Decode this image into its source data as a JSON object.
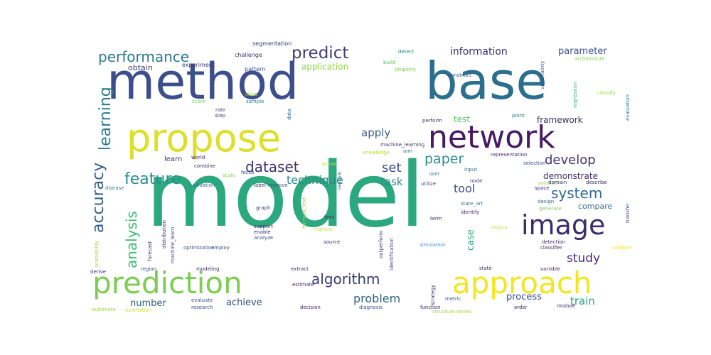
{
  "cloud": {
    "words": [
      {
        "text": "model",
        "weight": 100,
        "color": "#2ca87f"
      },
      {
        "text": "method",
        "weight": 72,
        "color": "#3c4f8c"
      },
      {
        "text": "base",
        "weight": 72,
        "color": "#2c6e8e"
      },
      {
        "text": "propose",
        "weight": 52,
        "color": "#dde02b"
      },
      {
        "text": "network",
        "weight": 44,
        "color": "#471a63"
      },
      {
        "text": "prediction",
        "weight": 40,
        "color": "#7ccd52"
      },
      {
        "text": "approach",
        "weight": 40,
        "color": "#f4e61e"
      },
      {
        "text": "image",
        "weight": 38,
        "color": "#3a2d6c"
      },
      {
        "text": "accuracy",
        "weight": 22,
        "color": "#365f8c"
      },
      {
        "text": "learning",
        "weight": 22,
        "color": "#2a7c8e"
      },
      {
        "text": "feature",
        "weight": 21,
        "color": "#26918b"
      },
      {
        "text": "analysis",
        "weight": 20,
        "color": "#3fbb74"
      },
      {
        "text": "predict",
        "weight": 22,
        "color": "#423b73"
      },
      {
        "text": "performance",
        "weight": 21,
        "color": "#2c7b8d"
      },
      {
        "text": "dataset",
        "weight": 20,
        "color": "#3d2f6b"
      },
      {
        "text": "algorithm",
        "weight": 20,
        "color": "#3a3b74"
      },
      {
        "text": "system",
        "weight": 20,
        "color": "#306a8e"
      },
      {
        "text": "paper",
        "weight": 19,
        "color": "#2a9187"
      },
      {
        "text": "develop",
        "weight": 18,
        "color": "#46306e"
      },
      {
        "text": "set",
        "weight": 18,
        "color": "#3e4787"
      },
      {
        "text": "study",
        "weight": 17,
        "color": "#482878"
      },
      {
        "text": "problem",
        "weight": 16,
        "color": "#30657f"
      },
      {
        "text": "technique",
        "weight": 16,
        "color": "#2c8a8a"
      },
      {
        "text": "tool",
        "weight": 16,
        "color": "#3d4c89"
      },
      {
        "text": "task",
        "weight": 15,
        "color": "#2c8a8c"
      },
      {
        "text": "apply",
        "weight": 15,
        "color": "#3a5d8a"
      },
      {
        "text": "train",
        "weight": 15,
        "color": "#2aa07e"
      },
      {
        "text": "information",
        "weight": 14,
        "color": "#3a2f6b"
      },
      {
        "text": "parameter",
        "weight": 13,
        "color": "#3b4f8a"
      },
      {
        "text": "process",
        "weight": 13,
        "color": "#3b4d8a"
      },
      {
        "text": "achieve",
        "weight": 13,
        "color": "#2e4f7a"
      },
      {
        "text": "number",
        "weight": 13,
        "color": "#2e5f80"
      },
      {
        "text": "case",
        "weight": 13,
        "color": "#2aa17e"
      },
      {
        "text": "framework",
        "weight": 12,
        "color": "#3a2f6b"
      },
      {
        "text": "test",
        "weight": 12,
        "color": "#5bc862"
      },
      {
        "text": "application",
        "weight": 12,
        "color": "#8dd544"
      },
      {
        "text": "demonstrate",
        "weight": 12,
        "color": "#3e2b72"
      },
      {
        "text": "compare",
        "weight": 11,
        "color": "#3b6d8c"
      },
      {
        "text": "obtain",
        "weight": 11,
        "color": "#3e3a6e"
      },
      {
        "text": "learn",
        "weight": 10,
        "color": "#3d2e6b"
      },
      {
        "text": "experiment",
        "weight": 8,
        "color": "#3a3a6e"
      },
      {
        "text": "segmentation",
        "weight": 8,
        "color": "#333b70"
      },
      {
        "text": "challenge",
        "weight": 8,
        "color": "#3b2c6d"
      },
      {
        "text": "pattern",
        "weight": 8,
        "color": "#3d4c88"
      },
      {
        "text": "build",
        "weight": 7,
        "color": "#5ac763"
      },
      {
        "text": "detect",
        "weight": 7,
        "color": "#2d7a8d"
      },
      {
        "text": "architecture",
        "weight": 7,
        "color": "#80d04c"
      },
      {
        "text": "property",
        "weight": 7,
        "color": "#87d24a"
      },
      {
        "text": "construct",
        "weight": 7,
        "color": "#2d4e85"
      },
      {
        "text": "uncertainty",
        "weight": 7,
        "color": "#3b4e87"
      },
      {
        "text": "regression",
        "weight": 7,
        "color": "#3ab776"
      },
      {
        "text": "classify",
        "weight": 7,
        "color": "#9fd43c"
      },
      {
        "text": "evaluation",
        "weight": 7,
        "color": "#2d7d8d"
      },
      {
        "text": "point",
        "weight": 7,
        "color": "#2c6f8d"
      },
      {
        "text": "perform",
        "weight": 7,
        "color": "#3a2a65"
      },
      {
        "text": "data",
        "weight": 7,
        "color": "#2d6a8d"
      },
      {
        "text": "score",
        "weight": 7,
        "color": "#74cf52"
      },
      {
        "text": "rate",
        "weight": 7,
        "color": "#3d3e7a"
      },
      {
        "text": "step",
        "weight": 7,
        "color": "#3f3b6f"
      },
      {
        "text": "sample",
        "weight": 7,
        "color": "#2a838c"
      },
      {
        "text": "class",
        "weight": 7,
        "color": "#9bd93b"
      },
      {
        "text": "simulation",
        "weight": 7,
        "color": "#4a8ec7"
      },
      {
        "text": "disease",
        "weight": 7,
        "color": "#2c7e8e"
      },
      {
        "text": "world",
        "weight": 7,
        "color": "#3c2c6d"
      },
      {
        "text": "combine",
        "weight": 7,
        "color": "#3a3066"
      },
      {
        "text": "machine_learning",
        "weight": 7,
        "color": "#3d2f6a"
      },
      {
        "text": "aim",
        "weight": 7,
        "color": "#2c6f8d"
      },
      {
        "text": "knowledge",
        "weight": 7,
        "color": "#b2dc33"
      },
      {
        "text": "prove",
        "weight": 7,
        "color": "#c4e030"
      },
      {
        "text": "scale",
        "weight": 7,
        "color": "#7fd34e"
      },
      {
        "text": "focus",
        "weight": 7,
        "color": "#3b4f89"
      },
      {
        "text": "validation",
        "weight": 7,
        "color": "#2d6e8c"
      },
      {
        "text": "label",
        "weight": 7,
        "color": "#3a2a6a"
      },
      {
        "text": "improve",
        "weight": 7,
        "color": "#3b4f88"
      },
      {
        "text": "require",
        "weight": 7,
        "color": "#2d6e8c"
      },
      {
        "text": "user",
        "weight": 7,
        "color": "#2d7d8d"
      },
      {
        "text": "input",
        "weight": 7,
        "color": "#2c6f8d"
      },
      {
        "text": "node",
        "weight": 7,
        "color": "#3a3d7c"
      },
      {
        "text": "utilize",
        "weight": 7,
        "color": "#3b4f88"
      },
      {
        "text": "space",
        "weight": 7,
        "color": "#3c2c6d"
      },
      {
        "text": "solution",
        "weight": 7,
        "color": "#9fd83a"
      },
      {
        "text": "representation",
        "weight": 7,
        "color": "#3a2a65"
      },
      {
        "text": "selection",
        "weight": 7,
        "color": "#3d4c88"
      },
      {
        "text": "domain",
        "weight": 7,
        "color": "#3a3b74"
      },
      {
        "text": "describe",
        "weight": 7,
        "color": "#3a2a65"
      },
      {
        "text": "design",
        "weight": 7,
        "color": "#2d6e8c"
      },
      {
        "text": "generate",
        "weight": 7,
        "color": "#87d24a"
      },
      {
        "text": "identify",
        "weight": 7,
        "color": "#3a2a65"
      },
      {
        "text": "state_art",
        "weight": 7,
        "color": "#3c6e8d"
      },
      {
        "text": "transfer",
        "weight": 7,
        "color": "#3d4c88"
      },
      {
        "text": "graph",
        "weight": 7,
        "color": "#3a3d7c"
      },
      {
        "text": "formula_text",
        "weight": 7,
        "color": "#9fd83a"
      },
      {
        "text": "text",
        "weight": 7,
        "color": "#3a2a65"
      },
      {
        "text": "term",
        "weight": 7,
        "color": "#3a2a65"
      },
      {
        "text": "capture",
        "weight": 7,
        "color": "#c4e030"
      },
      {
        "text": "reduce",
        "weight": 7,
        "color": "#c4e030"
      },
      {
        "text": "support",
        "weight": 7,
        "color": "#3a2a65"
      },
      {
        "text": "enable",
        "weight": 7,
        "color": "#3a2a65"
      },
      {
        "text": "analyze",
        "weight": 7,
        "color": "#3b4f88"
      },
      {
        "text": "source",
        "weight": 7,
        "color": "#3a2a65"
      },
      {
        "text": "outperform",
        "weight": 7,
        "color": "#3a2a65"
      },
      {
        "text": "identification",
        "weight": 7,
        "color": "#3d4c88"
      },
      {
        "text": "detection",
        "weight": 7,
        "color": "#3a2a65"
      },
      {
        "text": "classifier",
        "weight": 7,
        "color": "#3a2a65"
      },
      {
        "text": "validate",
        "weight": 7,
        "color": "#f2e51f"
      },
      {
        "text": "optimization",
        "weight": 7,
        "color": "#3d4c88"
      },
      {
        "text": "employ",
        "weight": 7,
        "color": "#3d4c88"
      },
      {
        "text": "distribution",
        "weight": 7,
        "color": "#3a2a65"
      },
      {
        "text": "machine_learn",
        "weight": 7,
        "color": "#3d4c88"
      },
      {
        "text": "forecast",
        "weight": 7,
        "color": "#3a2a65"
      },
      {
        "text": "probability",
        "weight": 7,
        "color": "#9fd83a"
      },
      {
        "text": "modeling",
        "weight": 7,
        "color": "#3a2a65"
      },
      {
        "text": "region",
        "weight": 7,
        "color": "#3d4c88"
      },
      {
        "text": "derive",
        "weight": 7,
        "color": "#3a2a65"
      },
      {
        "text": "extract",
        "weight": 7,
        "color": "#3a2a65"
      },
      {
        "text": "estimate",
        "weight": 7,
        "color": "#3a2a65"
      },
      {
        "text": "evaluate",
        "weight": 7,
        "color": "#3d4c88"
      },
      {
        "text": "research",
        "weight": 7,
        "color": "#3d4c88"
      },
      {
        "text": "decision",
        "weight": 7,
        "color": "#3a2a65"
      },
      {
        "text": "diagnosis",
        "weight": 7,
        "color": "#3d4c88"
      },
      {
        "text": "function",
        "weight": 7,
        "color": "#3a2a65"
      },
      {
        "text": "structure series",
        "weight": 7,
        "color": "#9fd83a"
      },
      {
        "text": "order",
        "weight": 7,
        "color": "#3a2a65"
      },
      {
        "text": "metric",
        "weight": 7,
        "color": "#3d4c88"
      },
      {
        "text": "strategy",
        "weight": 7,
        "color": "#3a2a65"
      },
      {
        "text": "variable",
        "weight": 7,
        "color": "#3a2a65"
      },
      {
        "text": "state",
        "weight": 7,
        "color": "#3a2a65"
      },
      {
        "text": "automate",
        "weight": 7,
        "color": "#9fd83a"
      },
      {
        "text": "estimation",
        "weight": 7,
        "color": "#c4e030"
      },
      {
        "text": "module",
        "weight": 7,
        "color": "#3a2a65"
      }
    ]
  }
}
